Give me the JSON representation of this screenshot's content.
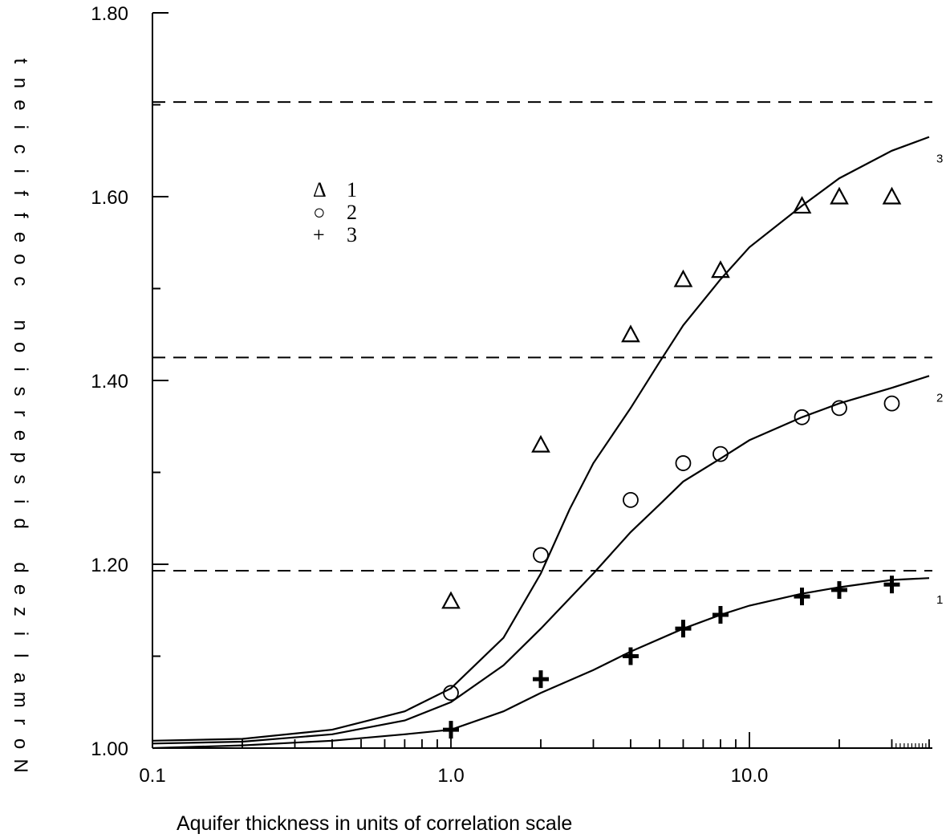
{
  "chart_data": {
    "type": "scatter",
    "xlabel": "Aquifer thickness in units of correlation scale",
    "ylabel": "Normalized dispersion coefficient",
    "x_scale": "log",
    "xlim": [
      0.1,
      40
    ],
    "ylim": [
      1.0,
      1.8
    ],
    "x_tick_labels": [
      "0.1",
      "1.0",
      "10.0"
    ],
    "y_tick_labels": [
      "1.00",
      "1.20",
      "1.40",
      "1.60",
      "1.80"
    ],
    "y_tick_values": [
      1.0,
      1.1,
      1.2,
      1.3,
      1.4,
      1.5,
      1.6,
      1.7,
      1.8
    ],
    "grid": false,
    "legend_position": "upper-left",
    "legend": [
      {
        "marker": "Δ",
        "label": "1"
      },
      {
        "marker": "○",
        "label": "2"
      },
      {
        "marker": "+",
        "label": "3"
      }
    ],
    "asymptotes": [
      1.193,
      1.425,
      1.703
    ],
    "series": [
      {
        "name": "1",
        "marker": "triangle",
        "points": [
          [
            1,
            1.16
          ],
          [
            2,
            1.33
          ],
          [
            4,
            1.45
          ],
          [
            6,
            1.51
          ],
          [
            8,
            1.52
          ],
          [
            15,
            1.59
          ],
          [
            20,
            1.6
          ],
          [
            30,
            1.6
          ]
        ]
      },
      {
        "name": "2",
        "marker": "circle",
        "points": [
          [
            1,
            1.06
          ],
          [
            2,
            1.21
          ],
          [
            4,
            1.27
          ],
          [
            6,
            1.31
          ],
          [
            8,
            1.32
          ],
          [
            15,
            1.36
          ],
          [
            20,
            1.37
          ],
          [
            30,
            1.375
          ]
        ]
      },
      {
        "name": "3",
        "marker": "plus",
        "points": [
          [
            1,
            1.02
          ],
          [
            2,
            1.075
          ],
          [
            4,
            1.1
          ],
          [
            6,
            1.13
          ],
          [
            8,
            1.145
          ],
          [
            15,
            1.165
          ],
          [
            20,
            1.172
          ],
          [
            30,
            1.178
          ]
        ]
      }
    ],
    "curves": [
      {
        "label": "3",
        "points": [
          [
            0.1,
            1.008
          ],
          [
            0.2,
            1.01
          ],
          [
            0.4,
            1.02
          ],
          [
            0.7,
            1.04
          ],
          [
            1.0,
            1.065
          ],
          [
            1.5,
            1.12
          ],
          [
            2.0,
            1.19
          ],
          [
            2.5,
            1.26
          ],
          [
            3.0,
            1.31
          ],
          [
            4.0,
            1.37
          ],
          [
            5.0,
            1.42
          ],
          [
            6.0,
            1.46
          ],
          [
            8.0,
            1.51
          ],
          [
            10.0,
            1.545
          ],
          [
            15.0,
            1.59
          ],
          [
            20.0,
            1.62
          ],
          [
            30.0,
            1.65
          ],
          [
            40.0,
            1.665
          ]
        ]
      },
      {
        "label": "2",
        "points": [
          [
            0.1,
            1.005
          ],
          [
            0.2,
            1.007
          ],
          [
            0.4,
            1.015
          ],
          [
            0.7,
            1.03
          ],
          [
            1.0,
            1.05
          ],
          [
            1.5,
            1.09
          ],
          [
            2.0,
            1.13
          ],
          [
            3.0,
            1.19
          ],
          [
            4.0,
            1.235
          ],
          [
            5.0,
            1.265
          ],
          [
            6.0,
            1.29
          ],
          [
            8.0,
            1.315
          ],
          [
            10.0,
            1.335
          ],
          [
            15.0,
            1.36
          ],
          [
            20.0,
            1.375
          ],
          [
            30.0,
            1.392
          ],
          [
            40.0,
            1.405
          ]
        ]
      },
      {
        "label": "1",
        "points": [
          [
            0.1,
            1.0
          ],
          [
            0.2,
            1.003
          ],
          [
            0.4,
            1.008
          ],
          [
            0.7,
            1.015
          ],
          [
            1.0,
            1.02
          ],
          [
            1.5,
            1.04
          ],
          [
            2.0,
            1.06
          ],
          [
            3.0,
            1.085
          ],
          [
            4.0,
            1.105
          ],
          [
            6.0,
            1.13
          ],
          [
            8.0,
            1.145
          ],
          [
            10.0,
            1.155
          ],
          [
            15.0,
            1.168
          ],
          [
            20.0,
            1.175
          ],
          [
            30.0,
            1.183
          ],
          [
            40.0,
            1.185
          ]
        ]
      }
    ]
  }
}
